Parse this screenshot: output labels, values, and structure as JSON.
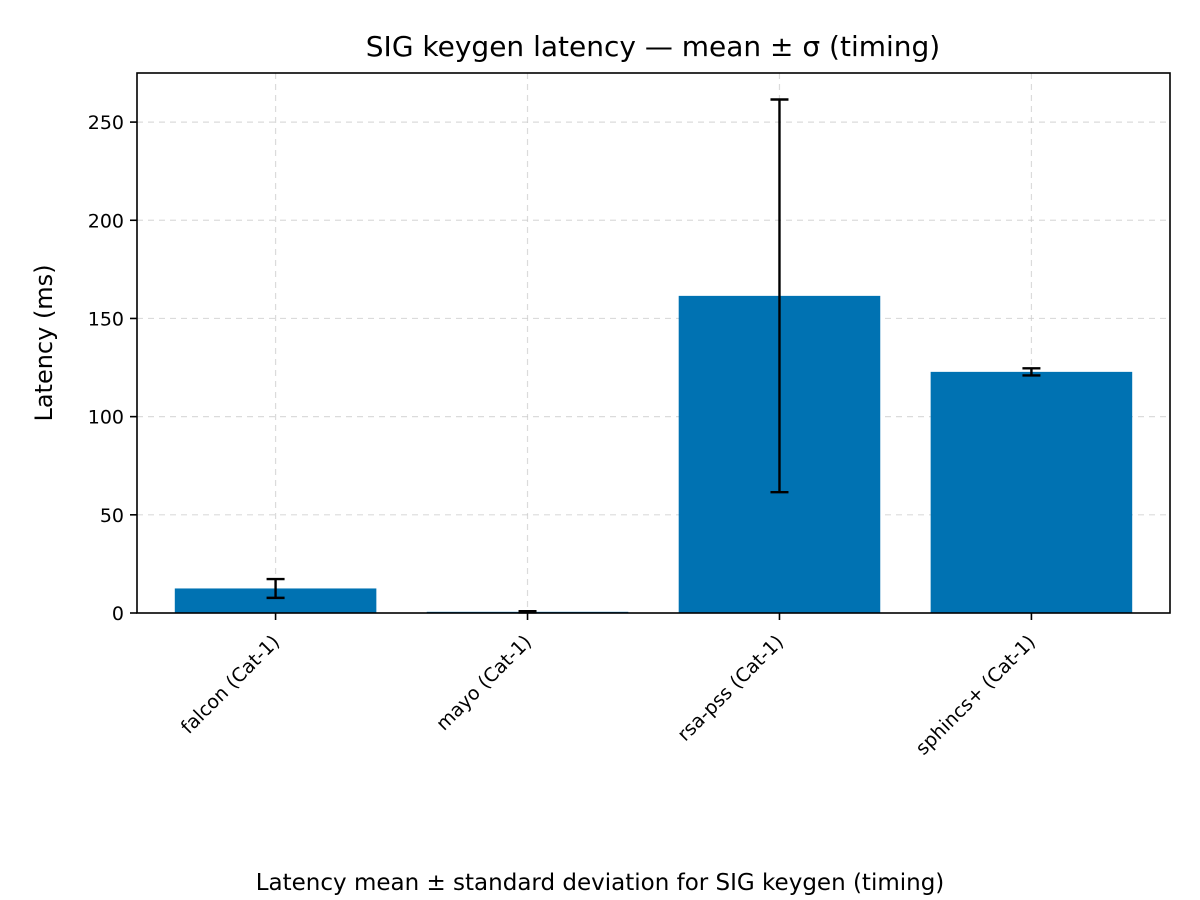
{
  "chart_data": {
    "type": "bar",
    "title": "SIG keygen latency — mean ± σ (timing)",
    "ylabel": "Latency (ms)",
    "xlabel": "",
    "caption": "Latency mean ± standard deviation for SIG keygen (timing)",
    "categories": [
      "falcon (Cat-1)",
      "mayo (Cat-1)",
      "rsa-pss (Cat-1)",
      "sphincs+ (Cat-1)"
    ],
    "series": [
      {
        "values": [
          12.5,
          0.6,
          161.5,
          122.8
        ],
        "errors": [
          4.8,
          0.3,
          100.0,
          1.8
        ]
      }
    ],
    "ylim": [
      0,
      275
    ],
    "yticks": [
      0,
      50,
      100,
      150,
      200,
      250
    ],
    "grid": true,
    "bar_color": "#0072b2",
    "error_color": "#000000"
  }
}
